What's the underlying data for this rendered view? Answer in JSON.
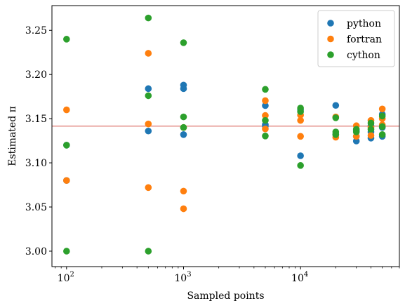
{
  "chart_data": {
    "type": "scatter",
    "xscale": "log",
    "xlabel": "Sampled points",
    "ylabel": "Estimated π",
    "xlim": [
      75,
      70000
    ],
    "ylim": [
      2.9825,
      3.278
    ],
    "yticks": [
      3.0,
      3.05,
      3.1,
      3.15,
      3.2,
      3.25
    ],
    "ytick_labels": [
      "3.00",
      "3.05",
      "3.10",
      "3.15",
      "3.20",
      "3.25"
    ],
    "xticks": [
      100,
      1000,
      10000
    ],
    "xtick_labels": [
      {
        "base": "10",
        "exp": "2"
      },
      {
        "base": "10",
        "exp": "3"
      },
      {
        "base": "10",
        "exp": "4"
      }
    ],
    "reference_line": {
      "y": 3.14159,
      "color": "#e4908a"
    },
    "legend": {
      "position": "top-right"
    },
    "grid": false,
    "series": [
      {
        "name": "python",
        "color": "#1f77b4",
        "points": [
          [
            100,
            3.12
          ],
          [
            100,
            3.08
          ],
          [
            500,
            3.184
          ],
          [
            500,
            3.136
          ],
          [
            1000,
            3.188
          ],
          [
            1000,
            3.184
          ],
          [
            1000,
            3.132
          ],
          [
            5000,
            3.1648
          ],
          [
            5000,
            3.1432
          ],
          [
            5000,
            3.1416
          ],
          [
            10000,
            3.108
          ],
          [
            10000,
            3.16
          ],
          [
            20000,
            3.165
          ],
          [
            20000,
            3.132
          ],
          [
            30000,
            3.1247
          ],
          [
            30000,
            3.13
          ],
          [
            30000,
            3.136
          ],
          [
            40000,
            3.128
          ],
          [
            40000,
            3.135
          ],
          [
            40000,
            3.142
          ],
          [
            50000,
            3.13
          ],
          [
            50000,
            3.14
          ],
          [
            50000,
            3.155
          ]
        ]
      },
      {
        "name": "fortran",
        "color": "#ff7f0e",
        "points": [
          [
            100,
            3.16
          ],
          [
            100,
            3.08
          ],
          [
            500,
            3.224
          ],
          [
            500,
            3.144
          ],
          [
            500,
            3.072
          ],
          [
            1000,
            3.14
          ],
          [
            1000,
            3.068
          ],
          [
            1000,
            3.048
          ],
          [
            5000,
            3.1704
          ],
          [
            5000,
            3.1536
          ],
          [
            5000,
            3.1384
          ],
          [
            10000,
            3.154
          ],
          [
            10000,
            3.148
          ],
          [
            10000,
            3.13
          ],
          [
            20000,
            3.152
          ],
          [
            20000,
            3.129
          ],
          [
            30000,
            3.142
          ],
          [
            30000,
            3.13
          ],
          [
            40000,
            3.148
          ],
          [
            40000,
            3.14
          ],
          [
            40000,
            3.131
          ],
          [
            50000,
            3.161
          ],
          [
            50000,
            3.15
          ],
          [
            50000,
            3.143
          ]
        ]
      },
      {
        "name": "cython",
        "color": "#2ca02c",
        "points": [
          [
            100,
            3.24
          ],
          [
            100,
            3.12
          ],
          [
            100,
            3.0
          ],
          [
            500,
            3.264
          ],
          [
            500,
            3.176
          ],
          [
            500,
            3.0
          ],
          [
            1000,
            3.236
          ],
          [
            1000,
            3.152
          ],
          [
            1000,
            3.14
          ],
          [
            5000,
            3.1832
          ],
          [
            5000,
            3.148
          ],
          [
            5000,
            3.1304
          ],
          [
            10000,
            3.162
          ],
          [
            10000,
            3.158
          ],
          [
            10000,
            3.097
          ],
          [
            20000,
            3.151
          ],
          [
            20000,
            3.135
          ],
          [
            20000,
            3.132
          ],
          [
            30000,
            3.138
          ],
          [
            30000,
            3.135
          ],
          [
            40000,
            3.145
          ],
          [
            40000,
            3.138
          ],
          [
            50000,
            3.153
          ],
          [
            50000,
            3.141
          ],
          [
            50000,
            3.132
          ]
        ]
      }
    ]
  }
}
